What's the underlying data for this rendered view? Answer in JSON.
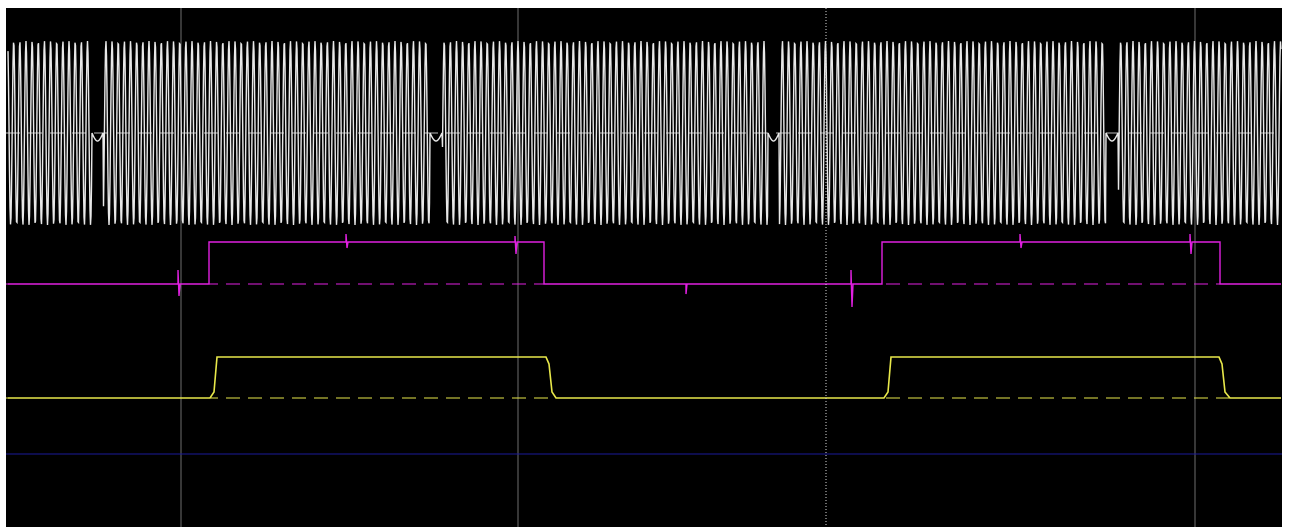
{
  "window": {
    "title": ""
  },
  "colors": {
    "background": "#000000",
    "frame": "#ffffff",
    "grid": "#6e6e6e",
    "cursor": "#d8d8d8",
    "ch1": "#e8e8e8",
    "ch2": "#e020e0",
    "ch3": "#e8e84a",
    "ch4": "#1a1a9a"
  },
  "icons": {
    "cursor": "dotted-vertical-cursor",
    "markers": "channel-level-markers"
  },
  "channels": [
    {
      "id": "ch1",
      "signal": "burst-sine",
      "level": 0.0
    },
    {
      "id": "ch2",
      "signal": "pulse",
      "level": 0.0,
      "high": 1.0
    },
    {
      "id": "ch3",
      "signal": "pulse",
      "level": 0.0,
      "high": 1.0
    },
    {
      "id": "ch4",
      "signal": "flat",
      "level": 0.0
    }
  ],
  "timebase": {
    "pulse_periods": 2,
    "ch2_high_fraction": 0.49,
    "ch3_high_fraction": 0.5,
    "ch3_delay_fraction": 0.015,
    "burst_gap_count": 4
  }
}
